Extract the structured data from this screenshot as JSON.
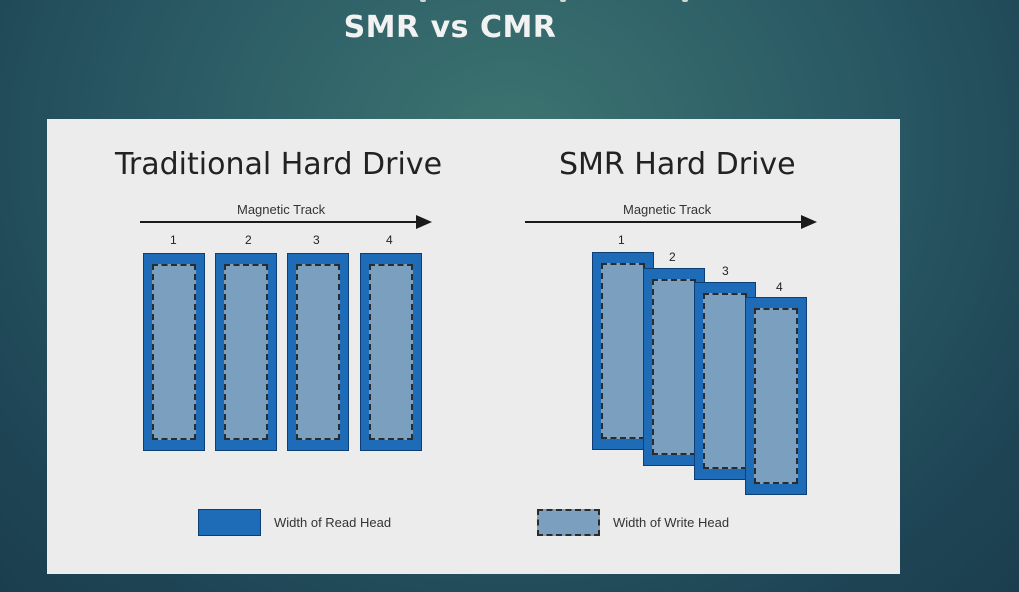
{
  "slide": {
    "title": "SMR vs CMR"
  },
  "diagrams": {
    "traditional": {
      "title": "Traditional Hard Drive",
      "track_label": "Magnetic Track",
      "tracks": [
        "1",
        "2",
        "3",
        "4"
      ]
    },
    "smr": {
      "title": "SMR Hard Drive",
      "track_label": "Magnetic Track",
      "tracks": [
        "1",
        "2",
        "3",
        "4"
      ]
    }
  },
  "legend": {
    "read_head": "Width of Read Head",
    "write_head": "Width of Write Head"
  },
  "colors": {
    "read_head_fill": "#1e6bb8",
    "write_head_fill": "#7b9fbe",
    "panel_background": "#ececec"
  }
}
